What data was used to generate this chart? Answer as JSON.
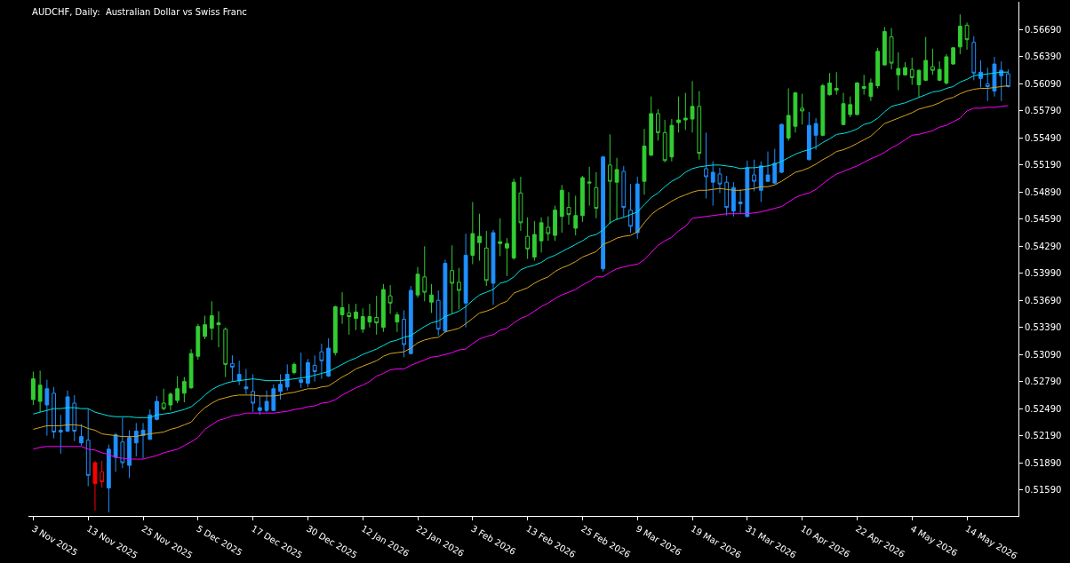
{
  "chart_data": {
    "type": "candlestick",
    "title": "AUDCHF, Daily:  Australian Dollar vs Swiss Franc",
    "categories": [
      "3 Nov 2025",
      null,
      null,
      null,
      null,
      null,
      null,
      null,
      "13 Nov 2025",
      null,
      null,
      null,
      null,
      null,
      null,
      null,
      "25 Nov 2025",
      null,
      null,
      null,
      null,
      null,
      null,
      null,
      "5 Dec 2025",
      null,
      null,
      null,
      null,
      null,
      null,
      null,
      "17 Dec 2025",
      null,
      null,
      null,
      null,
      null,
      null,
      null,
      "30 Dec 2025",
      null,
      null,
      null,
      null,
      null,
      null,
      null,
      "12 Jan 2026",
      null,
      null,
      null,
      null,
      null,
      null,
      null,
      "22 Jan 2026",
      null,
      null,
      null,
      null,
      null,
      null,
      null,
      "3 Feb 2026",
      null,
      null,
      null,
      null,
      null,
      null,
      null,
      "13 Feb 2026",
      null,
      null,
      null,
      null,
      null,
      null,
      null,
      "25 Feb 2026",
      null,
      null,
      null,
      null,
      null,
      null,
      null,
      "9 Mar 2026",
      null,
      null,
      null,
      null,
      null,
      null,
      null,
      "19 Mar 2026",
      null,
      null,
      null,
      null,
      null,
      null,
      null,
      "31 Mar 2026",
      null,
      null,
      null,
      null,
      null,
      null,
      null,
      "10 Apr 2026",
      null,
      null,
      null,
      null,
      null,
      null,
      null,
      "22 Apr 2026",
      null,
      null,
      null,
      null,
      null,
      null,
      null,
      "4 May 2026",
      null,
      null,
      null,
      null,
      null,
      null,
      null,
      "14 May 2026",
      null,
      null,
      null,
      null,
      null,
      null
    ],
    "ohlc": [
      [
        0.5259,
        0.529,
        0.5253,
        0.5282
      ],
      [
        0.5257,
        0.5291,
        0.5245,
        0.5275
      ],
      [
        0.5253,
        0.5281,
        0.5219,
        0.5271
      ],
      [
        0.5266,
        0.5273,
        0.5216,
        0.5223
      ],
      [
        0.5225,
        0.5242,
        0.5199,
        0.5223
      ],
      [
        0.5224,
        0.5269,
        0.5223,
        0.5262
      ],
      [
        0.5255,
        0.5264,
        0.5213,
        0.5224
      ],
      [
        0.5211,
        0.5232,
        0.5208,
        0.5218
      ],
      [
        0.5214,
        0.5249,
        0.5163,
        0.5175
      ],
      [
        0.5166,
        0.5191,
        0.5136,
        0.5189
      ],
      [
        0.5179,
        0.5191,
        0.5161,
        0.5168
      ],
      [
        0.5161,
        0.5209,
        0.5134,
        0.5204
      ],
      [
        0.5195,
        0.5222,
        0.5179,
        0.522
      ],
      [
        0.5212,
        0.5239,
        0.5183,
        0.5189
      ],
      [
        0.5186,
        0.5225,
        0.5172,
        0.5217
      ],
      [
        0.5211,
        0.5233,
        0.5196,
        0.5224
      ],
      [
        0.5219,
        0.5233,
        0.5194,
        0.5225
      ],
      [
        0.5215,
        0.5248,
        0.5214,
        0.5242
      ],
      [
        0.5237,
        0.5263,
        0.5236,
        0.5257
      ],
      [
        0.5255,
        0.5271,
        0.5247,
        0.5249
      ],
      [
        0.5253,
        0.5267,
        0.5247,
        0.5265
      ],
      [
        0.5258,
        0.5285,
        0.5255,
        0.5271
      ],
      [
        0.5266,
        0.5284,
        0.5256,
        0.5279
      ],
      [
        0.5272,
        0.5315,
        0.5271,
        0.531
      ],
      [
        0.5307,
        0.5343,
        0.5303,
        0.534
      ],
      [
        0.5329,
        0.5352,
        0.5326,
        0.5342
      ],
      [
        0.5338,
        0.5368,
        0.5325,
        0.5352
      ],
      [
        0.5342,
        0.5357,
        0.5317,
        0.5344
      ],
      [
        0.5337,
        0.5339,
        0.5284,
        0.5298
      ],
      [
        0.5299,
        0.5308,
        0.5279,
        0.5295
      ],
      [
        0.528,
        0.5302,
        0.5275,
        0.5287
      ],
      [
        0.5271,
        0.5293,
        0.5265,
        0.5273
      ],
      [
        0.5268,
        0.5287,
        0.5245,
        0.5255
      ],
      [
        0.5247,
        0.5263,
        0.5242,
        0.525
      ],
      [
        0.5247,
        0.5269,
        0.5245,
        0.5257
      ],
      [
        0.5247,
        0.5276,
        0.5246,
        0.5271
      ],
      [
        0.5268,
        0.5287,
        0.5259,
        0.5276
      ],
      [
        0.5273,
        0.5298,
        0.5269,
        0.5287
      ],
      [
        0.5289,
        0.53,
        0.5287,
        0.5298
      ],
      [
        0.5278,
        0.5311,
        0.5272,
        0.5281
      ],
      [
        0.5277,
        0.5304,
        0.5273,
        0.53
      ],
      [
        0.5297,
        0.5308,
        0.5279,
        0.529
      ],
      [
        0.5312,
        0.5321,
        0.5282,
        0.5302
      ],
      [
        0.5285,
        0.5327,
        0.5284,
        0.5316
      ],
      [
        0.5311,
        0.5363,
        0.5308,
        0.5362
      ],
      [
        0.5353,
        0.5378,
        0.5343,
        0.5361
      ],
      [
        0.5355,
        0.5365,
        0.5331,
        0.5351
      ],
      [
        0.5349,
        0.5365,
        0.5336,
        0.5356
      ],
      [
        0.5337,
        0.536,
        0.5333,
        0.5351
      ],
      [
        0.5345,
        0.5365,
        0.5339,
        0.5351
      ],
      [
        0.535,
        0.5374,
        0.5331,
        0.5344
      ],
      [
        0.5339,
        0.5387,
        0.5334,
        0.5381
      ],
      [
        0.5374,
        0.5386,
        0.5354,
        0.5366
      ],
      [
        0.5345,
        0.5356,
        0.5334,
        0.5353
      ],
      [
        0.5348,
        0.5358,
        0.5306,
        0.532
      ],
      [
        0.531,
        0.5385,
        0.5309,
        0.538
      ],
      [
        0.5375,
        0.5406,
        0.5372,
        0.5398
      ],
      [
        0.5395,
        0.5429,
        0.5368,
        0.5378
      ],
      [
        0.5367,
        0.5387,
        0.5355,
        0.5375
      ],
      [
        0.5369,
        0.538,
        0.533,
        0.5337
      ],
      [
        0.5335,
        0.5414,
        0.5333,
        0.541
      ],
      [
        0.5402,
        0.543,
        0.5354,
        0.5388
      ],
      [
        0.5389,
        0.5405,
        0.5359,
        0.538
      ],
      [
        0.5366,
        0.5443,
        0.5339,
        0.5419
      ],
      [
        0.5419,
        0.5478,
        0.5409,
        0.5443
      ],
      [
        0.5433,
        0.5465,
        0.5413,
        0.544
      ],
      [
        0.5427,
        0.5446,
        0.5385,
        0.5391
      ],
      [
        0.5388,
        0.5447,
        0.5364,
        0.5444
      ],
      [
        0.5432,
        0.546,
        0.5418,
        0.5434
      ],
      [
        0.5427,
        0.5438,
        0.5396,
        0.5432
      ],
      [
        0.5416,
        0.5504,
        0.5414,
        0.55
      ],
      [
        0.5488,
        0.5506,
        0.5446,
        0.5455
      ],
      [
        0.544,
        0.5461,
        0.5415,
        0.5426
      ],
      [
        0.5417,
        0.5457,
        0.5413,
        0.5442
      ],
      [
        0.5435,
        0.5461,
        0.5422,
        0.5455
      ],
      [
        0.545,
        0.5462,
        0.5435,
        0.5443
      ],
      [
        0.5441,
        0.5474,
        0.5435,
        0.5469
      ],
      [
        0.5462,
        0.5497,
        0.5444,
        0.5491
      ],
      [
        0.5472,
        0.5489,
        0.5453,
        0.5464
      ],
      [
        0.5449,
        0.5485,
        0.5441,
        0.5463
      ],
      [
        0.5463,
        0.5507,
        0.5456,
        0.5505
      ],
      [
        0.5499,
        0.5517,
        0.5474,
        0.55
      ],
      [
        0.5494,
        0.5511,
        0.546,
        0.5471
      ],
      [
        0.5404,
        0.5529,
        0.5401,
        0.5528
      ],
      [
        0.5519,
        0.5553,
        0.5454,
        0.5501
      ],
      [
        0.55,
        0.5527,
        0.5458,
        0.5514
      ],
      [
        0.5512,
        0.5518,
        0.5461,
        0.5472
      ],
      [
        0.5469,
        0.5498,
        0.5444,
        0.5451
      ],
      [
        0.5444,
        0.5506,
        0.5437,
        0.5498
      ],
      [
        0.5501,
        0.5559,
        0.5486,
        0.554
      ],
      [
        0.553,
        0.5595,
        0.5529,
        0.5576
      ],
      [
        0.5576,
        0.5581,
        0.5546,
        0.5555
      ],
      [
        0.5555,
        0.5569,
        0.5522,
        0.5524
      ],
      [
        0.5528,
        0.557,
        0.5523,
        0.5563
      ],
      [
        0.5566,
        0.5595,
        0.5555,
        0.5569
      ],
      [
        0.5569,
        0.5599,
        0.5558,
        0.5571
      ],
      [
        0.557,
        0.5612,
        0.5555,
        0.5584
      ],
      [
        0.5584,
        0.5601,
        0.5525,
        0.5532
      ],
      [
        0.5515,
        0.5555,
        0.5482,
        0.5506
      ],
      [
        0.55,
        0.5523,
        0.5474,
        0.5511
      ],
      [
        0.5509,
        0.5516,
        0.5488,
        0.5498
      ],
      [
        0.55,
        0.5507,
        0.5463,
        0.5472
      ],
      [
        0.5468,
        0.55,
        0.5462,
        0.5494
      ],
      [
        0.5476,
        0.5492,
        0.5465,
        0.5478
      ],
      [
        0.5462,
        0.5524,
        0.5461,
        0.5516
      ],
      [
        0.5508,
        0.5525,
        0.549,
        0.5501
      ],
      [
        0.5491,
        0.5523,
        0.5478,
        0.5518
      ],
      [
        0.5501,
        0.5534,
        0.55,
        0.5508
      ],
      [
        0.5499,
        0.5537,
        0.5498,
        0.5521
      ],
      [
        0.5511,
        0.5565,
        0.551,
        0.5564
      ],
      [
        0.5549,
        0.5604,
        0.5546,
        0.5574
      ],
      [
        0.5562,
        0.56,
        0.5555,
        0.5599
      ],
      [
        0.5582,
        0.5598,
        0.5564,
        0.5579
      ],
      [
        0.5525,
        0.5578,
        0.5524,
        0.5563
      ],
      [
        0.5552,
        0.5571,
        0.5536,
        0.5565
      ],
      [
        0.5552,
        0.5609,
        0.5551,
        0.5607
      ],
      [
        0.5597,
        0.5621,
        0.5596,
        0.561
      ],
      [
        0.5604,
        0.5622,
        0.5597,
        0.5602
      ],
      [
        0.5564,
        0.5599,
        0.5563,
        0.5587
      ],
      [
        0.5575,
        0.5595,
        0.5572,
        0.5586
      ],
      [
        0.5575,
        0.5611,
        0.5574,
        0.561
      ],
      [
        0.5604,
        0.5619,
        0.5597,
        0.5606
      ],
      [
        0.5595,
        0.5615,
        0.559,
        0.561
      ],
      [
        0.5607,
        0.5649,
        0.5604,
        0.5645
      ],
      [
        0.563,
        0.5672,
        0.5629,
        0.5667
      ],
      [
        0.5661,
        0.5671,
        0.5625,
        0.5632
      ],
      [
        0.5619,
        0.5644,
        0.5602,
        0.5626
      ],
      [
        0.5619,
        0.5633,
        0.5618,
        0.5627
      ],
      [
        0.5625,
        0.5638,
        0.5608,
        0.5616
      ],
      [
        0.5608,
        0.5625,
        0.5594,
        0.5624
      ],
      [
        0.5613,
        0.5661,
        0.5612,
        0.5635
      ],
      [
        0.5628,
        0.5648,
        0.5619,
        0.5624
      ],
      [
        0.5613,
        0.5634,
        0.5612,
        0.5625
      ],
      [
        0.561,
        0.5642,
        0.5608,
        0.5639
      ],
      [
        0.5631,
        0.565,
        0.563,
        0.5649
      ],
      [
        0.565,
        0.5686,
        0.5642,
        0.5673
      ],
      [
        0.5674,
        0.5677,
        0.5647,
        0.5658
      ],
      [
        0.5655,
        0.5662,
        0.5613,
        0.5621
      ],
      [
        0.5615,
        0.5635,
        0.5605,
        0.5622
      ],
      [
        0.5609,
        0.5627,
        0.559,
        0.5606
      ],
      [
        0.5601,
        0.5639,
        0.5595,
        0.5631
      ],
      [
        0.5618,
        0.5634,
        0.559,
        0.5624
      ],
      [
        0.562,
        0.5625,
        0.5605,
        0.5606
      ]
    ],
    "colors": [
      "#32cd32",
      "#32cd32",
      "#1e90ff",
      "#1e90ff",
      "#1e90ff",
      "#1e90ff",
      "#1e90ff",
      "#1e90ff",
      "#1e90ff",
      "#ff0000",
      "#ff0000",
      "#1e90ff",
      "#1e90ff",
      "#1e90ff",
      "#1e90ff",
      "#1e90ff",
      "#1e90ff",
      "#1e90ff",
      "#1e90ff",
      "#32cd32",
      "#32cd32",
      "#32cd32",
      "#32cd32",
      "#32cd32",
      "#32cd32",
      "#32cd32",
      "#32cd32",
      "#32cd32",
      "#32cd32",
      "#1e90ff",
      "#1e90ff",
      "#1e90ff",
      "#1e90ff",
      "#1e90ff",
      "#1e90ff",
      "#1e90ff",
      "#1e90ff",
      "#1e90ff",
      "#32cd32",
      "#1e90ff",
      "#1e90ff",
      "#1e90ff",
      "#1e90ff",
      "#1e90ff",
      "#32cd32",
      "#32cd32",
      "#32cd32",
      "#32cd32",
      "#32cd32",
      "#32cd32",
      "#32cd32",
      "#32cd32",
      "#32cd32",
      "#32cd32",
      "#1e90ff",
      "#1e90ff",
      "#32cd32",
      "#32cd32",
      "#32cd32",
      "#1e90ff",
      "#1e90ff",
      "#32cd32",
      "#32cd32",
      "#1e90ff",
      "#32cd32",
      "#32cd32",
      "#32cd32",
      "#1e90ff",
      "#32cd32",
      "#32cd32",
      "#32cd32",
      "#32cd32",
      "#32cd32",
      "#32cd32",
      "#32cd32",
      "#32cd32",
      "#32cd32",
      "#32cd32",
      "#32cd32",
      "#32cd32",
      "#32cd32",
      "#32cd32",
      "#32cd32",
      "#1e90ff",
      "#32cd32",
      "#32cd32",
      "#1e90ff",
      "#1e90ff",
      "#1e90ff",
      "#32cd32",
      "#32cd32",
      "#32cd32",
      "#32cd32",
      "#32cd32",
      "#32cd32",
      "#32cd32",
      "#32cd32",
      "#32cd32",
      "#1e90ff",
      "#1e90ff",
      "#1e90ff",
      "#1e90ff",
      "#1e90ff",
      "#1e90ff",
      "#1e90ff",
      "#1e90ff",
      "#1e90ff",
      "#1e90ff",
      "#1e90ff",
      "#1e90ff",
      "#32cd32",
      "#32cd32",
      "#32cd32",
      "#1e90ff",
      "#1e90ff",
      "#32cd32",
      "#32cd32",
      "#32cd32",
      "#32cd32",
      "#32cd32",
      "#32cd32",
      "#32cd32",
      "#32cd32",
      "#32cd32",
      "#32cd32",
      "#32cd32",
      "#32cd32",
      "#32cd32",
      "#32cd32",
      "#32cd32",
      "#32cd32",
      "#32cd32",
      "#32cd32",
      "#32cd32",
      "#32cd32",
      "#32cd32",
      "#32cd32",
      "#1e90ff",
      "#1e90ff",
      "#1e90ff",
      "#1e90ff",
      "#1e90ff",
      "#1e90ff"
    ],
    "series": [
      {
        "type": "line",
        "color": "#00e5e5",
        "values": [
          0.5243,
          0.5245,
          0.5247,
          0.5249,
          0.5249,
          0.525,
          0.525,
          0.5249,
          0.5249,
          0.5245,
          0.5243,
          0.5241,
          0.524,
          0.524,
          0.524,
          0.5239,
          0.5239,
          0.5239,
          0.5242,
          0.5243,
          0.5244,
          0.5246,
          0.5248,
          0.5251,
          0.5257,
          0.5264,
          0.527,
          0.5274,
          0.5277,
          0.5279,
          0.528,
          0.5281,
          0.5282,
          0.5281,
          0.528,
          0.528,
          0.528,
          0.5281,
          0.5282,
          0.5283,
          0.5284,
          0.5286,
          0.5288,
          0.529,
          0.5294,
          0.5298,
          0.5302,
          0.5305,
          0.5309,
          0.5312,
          0.5315,
          0.5319,
          0.5323,
          0.5325,
          0.5328,
          0.533,
          0.5335,
          0.534,
          0.5344,
          0.5346,
          0.5351,
          0.5354,
          0.5357,
          0.5362,
          0.5369,
          0.5375,
          0.5378,
          0.5381,
          0.5388,
          0.539,
          0.5395,
          0.5403,
          0.5406,
          0.5408,
          0.5411,
          0.5416,
          0.5419,
          0.5423,
          0.5427,
          0.5431,
          0.5435,
          0.544,
          0.5442,
          0.5447,
          0.5455,
          0.5459,
          0.5461,
          0.5464,
          0.5467,
          0.5475,
          0.5483,
          0.5488,
          0.5495,
          0.5501,
          0.5505,
          0.5511,
          0.5515,
          0.5517,
          0.5518,
          0.5519,
          0.5519,
          0.5518,
          0.5517,
          0.5515,
          0.5516,
          0.5516,
          0.5517,
          0.5518,
          0.552,
          0.5523,
          0.5527,
          0.5531,
          0.5534,
          0.5536,
          0.5539,
          0.5544,
          0.5548,
          0.5553,
          0.5554,
          0.5556,
          0.5559,
          0.5564,
          0.5566,
          0.5571,
          0.5578,
          0.5584,
          0.5586,
          0.5588,
          0.5591,
          0.5594,
          0.5597,
          0.56,
          0.5601,
          0.5604,
          0.5606,
          0.5611,
          0.5614,
          0.5618,
          0.5619,
          0.562,
          0.5621,
          0.5622,
          0.5622
        ]
      },
      {
        "type": "line",
        "color": "#daa520",
        "values": [
          0.5226,
          0.5228,
          0.523,
          0.523,
          0.523,
          0.5231,
          0.5231,
          0.523,
          0.5227,
          0.5225,
          0.5221,
          0.522,
          0.5219,
          0.5218,
          0.5218,
          0.5218,
          0.522,
          0.5221,
          0.5222,
          0.5223,
          0.5226,
          0.5228,
          0.5231,
          0.5234,
          0.5243,
          0.525,
          0.5255,
          0.5259,
          0.5261,
          0.5263,
          0.5264,
          0.5264,
          0.5264,
          0.5263,
          0.5263,
          0.5263,
          0.5264,
          0.5266,
          0.5267,
          0.5269,
          0.5271,
          0.5271,
          0.5273,
          0.5274,
          0.5279,
          0.5284,
          0.5288,
          0.5293,
          0.5296,
          0.5299,
          0.5302,
          0.5307,
          0.531,
          0.5311,
          0.5312,
          0.5316,
          0.5322,
          0.5325,
          0.5327,
          0.5328,
          0.5334,
          0.5336,
          0.5338,
          0.5343,
          0.5349,
          0.5355,
          0.5357,
          0.536,
          0.5365,
          0.5368,
          0.5377,
          0.538,
          0.5383,
          0.5388,
          0.5392,
          0.5395,
          0.5401,
          0.5405,
          0.5408,
          0.5412,
          0.5417,
          0.542,
          0.5423,
          0.5431,
          0.5434,
          0.5438,
          0.544,
          0.5441,
          0.5445,
          0.5455,
          0.5464,
          0.547,
          0.5474,
          0.5479,
          0.5483,
          0.5486,
          0.5489,
          0.5491,
          0.5491,
          0.5492,
          0.5493,
          0.5492,
          0.5491,
          0.5491,
          0.5492,
          0.5493,
          0.5495,
          0.5495,
          0.5497,
          0.5501,
          0.5506,
          0.5511,
          0.5513,
          0.5516,
          0.552,
          0.5525,
          0.5529,
          0.5534,
          0.5536,
          0.5539,
          0.5543,
          0.5547,
          0.5551,
          0.5558,
          0.5565,
          0.5568,
          0.5571,
          0.5574,
          0.5577,
          0.5581,
          0.5583,
          0.5585,
          0.5588,
          0.5592,
          0.5594,
          0.5598,
          0.5601,
          0.5603,
          0.5604,
          0.5604,
          0.5605,
          0.5606,
          0.5607
        ]
      },
      {
        "type": "line",
        "color": "#ff00ff",
        "values": [
          0.5204,
          0.5206,
          0.5207,
          0.5207,
          0.5207,
          0.5207,
          0.5207,
          0.5207,
          0.5204,
          0.5203,
          0.52,
          0.5198,
          0.5195,
          0.5194,
          0.5193,
          0.5193,
          0.5193,
          0.5195,
          0.5197,
          0.52,
          0.5202,
          0.5204,
          0.5208,
          0.5212,
          0.5217,
          0.5226,
          0.5231,
          0.5236,
          0.5238,
          0.5241,
          0.5242,
          0.5244,
          0.5244,
          0.5244,
          0.5244,
          0.5244,
          0.5245,
          0.5246,
          0.5248,
          0.5249,
          0.5251,
          0.5252,
          0.5255,
          0.5256,
          0.5259,
          0.5264,
          0.5268,
          0.5272,
          0.5275,
          0.5279,
          0.5285,
          0.5288,
          0.5292,
          0.5293,
          0.5293,
          0.5297,
          0.53,
          0.5303,
          0.5306,
          0.5307,
          0.5309,
          0.5311,
          0.5314,
          0.5315,
          0.5321,
          0.5326,
          0.5329,
          0.5331,
          0.5336,
          0.5338,
          0.5344,
          0.5349,
          0.5352,
          0.5357,
          0.5362,
          0.5366,
          0.5371,
          0.5375,
          0.5378,
          0.5381,
          0.5386,
          0.539,
          0.5395,
          0.5395,
          0.54,
          0.5404,
          0.5406,
          0.5408,
          0.5409,
          0.5414,
          0.5422,
          0.543,
          0.5435,
          0.5439,
          0.5446,
          0.5451,
          0.546,
          0.5461,
          0.5462,
          0.5463,
          0.5464,
          0.5465,
          0.5465,
          0.5465,
          0.5465,
          0.5466,
          0.5467,
          0.5469,
          0.5471,
          0.5473,
          0.5478,
          0.5483,
          0.5486,
          0.5488,
          0.5492,
          0.5498,
          0.5504,
          0.5509,
          0.5512,
          0.5515,
          0.5518,
          0.5522,
          0.5526,
          0.5529,
          0.5533,
          0.5538,
          0.5542,
          0.5547,
          0.5552,
          0.5553,
          0.5555,
          0.5557,
          0.5561,
          0.5563,
          0.5567,
          0.5571,
          0.5579,
          0.5582,
          0.5582,
          0.5583,
          0.5583,
          0.5584,
          0.5585
        ]
      }
    ],
    "ylim": [
      0.513,
      0.57
    ],
    "yticks": [
      {
        "value": 0.5159,
        "label": "0.51590"
      },
      {
        "value": 0.5189,
        "label": "0.51890"
      },
      {
        "value": 0.5219,
        "label": "0.52190"
      },
      {
        "value": 0.5249,
        "label": "0.52490"
      },
      {
        "value": 0.5279,
        "label": "0.52790"
      },
      {
        "value": 0.5309,
        "label": "0.53090"
      },
      {
        "value": 0.5339,
        "label": "0.53390"
      },
      {
        "value": 0.5369,
        "label": "0.53690"
      },
      {
        "value": 0.5399,
        "label": "0.53990"
      },
      {
        "value": 0.5429,
        "label": "0.54290"
      },
      {
        "value": 0.5459,
        "label": "0.54590"
      },
      {
        "value": 0.5489,
        "label": "0.54890"
      },
      {
        "value": 0.5519,
        "label": "0.55190"
      },
      {
        "value": 0.5549,
        "label": "0.55490"
      },
      {
        "value": 0.5579,
        "label": "0.55790"
      },
      {
        "value": 0.5609,
        "label": "0.56090"
      },
      {
        "value": 0.5639,
        "label": "0.56390"
      },
      {
        "value": 0.5669,
        "label": "0.56690"
      }
    ]
  }
}
